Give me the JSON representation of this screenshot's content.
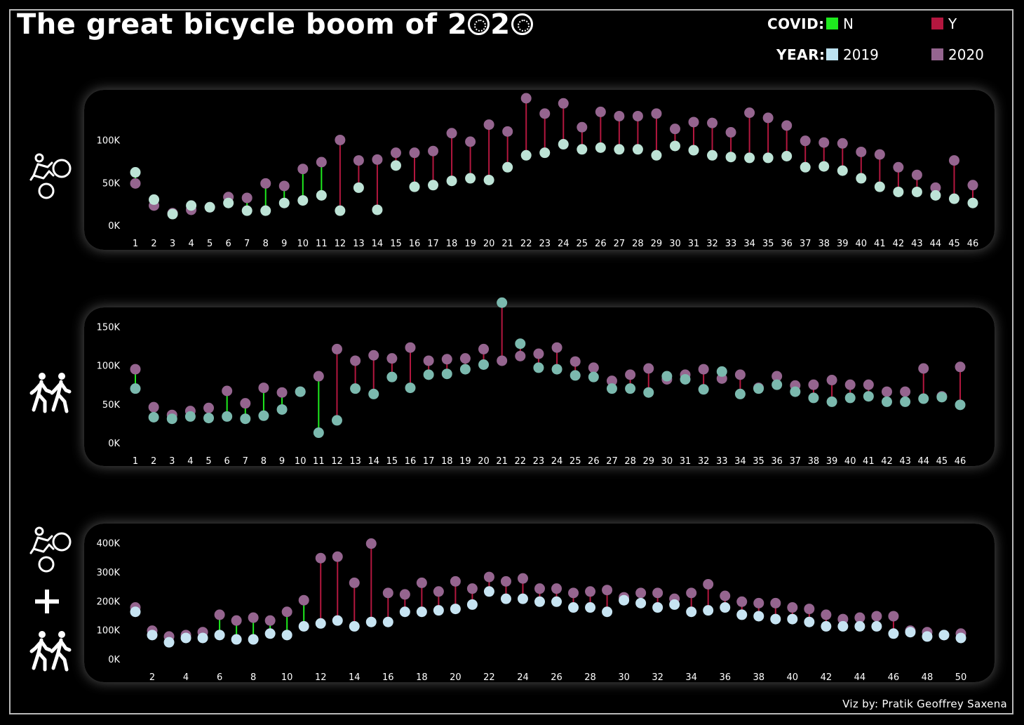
{
  "title_text": "The great bicycle boom of 2",
  "title_digit": "2",
  "legend": {
    "covid_label": "COVID:",
    "covid_n": "N",
    "covid_y": "Y",
    "year_label": "YEAR:",
    "year_2019": "2019",
    "year_2020": "2020"
  },
  "credit": "Viz by: Pratik Geoffrey Saxena",
  "colors": {
    "covid_n": "#1eea1e",
    "covid_y": "#b3173f",
    "y2019_bikes": "#bde3d6",
    "y2019_ped": "#7bb9ae",
    "y2019_total": "#c7e4f2",
    "y2020": "#95658f",
    "panel": "#050505"
  },
  "icons": [
    "cyclist-icon",
    "pedestrians-icon",
    "plus-icon"
  ],
  "chart_data": [
    {
      "type": "dumbbell",
      "subject": "bicycles",
      "ylim": [
        0,
        150000
      ],
      "yticks": [
        {
          "v": 0,
          "label": "0K"
        },
        {
          "v": 50000,
          "label": "50K"
        },
        {
          "v": 100000,
          "label": "100K"
        }
      ],
      "x": [
        1,
        2,
        3,
        4,
        5,
        6,
        7,
        8,
        9,
        10,
        11,
        12,
        13,
        14,
        15,
        16,
        17,
        18,
        19,
        20,
        21,
        22,
        23,
        24,
        25,
        26,
        27,
        28,
        29,
        30,
        31,
        32,
        33,
        34,
        35,
        36,
        37,
        38,
        39,
        40,
        41,
        42,
        43,
        44,
        45,
        46
      ],
      "xtick_labels": [
        "1",
        "2",
        "3",
        "4",
        "5",
        "6",
        "7",
        "8",
        "9",
        "10",
        "11",
        "12",
        "13",
        "14",
        "15",
        "16",
        "17",
        "18",
        "19",
        "20",
        "21",
        "22",
        "23",
        "24",
        "25",
        "26",
        "27",
        "28",
        "29",
        "30",
        "31",
        "32",
        "33",
        "34",
        "35",
        "36",
        "37",
        "38",
        "39",
        "40",
        "41",
        "42",
        "43",
        "44",
        "45",
        "46"
      ],
      "covid": [
        "N",
        "N",
        "N",
        "N",
        "N",
        "N",
        "N",
        "N",
        "N",
        "N",
        "N",
        "Y",
        "Y",
        "Y",
        "Y",
        "Y",
        "Y",
        "Y",
        "Y",
        "Y",
        "Y",
        "Y",
        "Y",
        "Y",
        "Y",
        "Y",
        "Y",
        "Y",
        "Y",
        "Y",
        "Y",
        "Y",
        "Y",
        "Y",
        "Y",
        "Y",
        "Y",
        "Y",
        "Y",
        "Y",
        "Y",
        "Y",
        "Y",
        "Y",
        "Y",
        "Y"
      ],
      "series": [
        {
          "name": "2019",
          "values": [
            63000,
            31000,
            14000,
            24000,
            22000,
            27000,
            18000,
            18000,
            27000,
            30000,
            36000,
            18000,
            45000,
            19000,
            71000,
            46000,
            48000,
            53000,
            56000,
            54000,
            69000,
            83000,
            86000,
            96000,
            90000,
            92000,
            90000,
            90000,
            83000,
            94000,
            89000,
            83000,
            81000,
            80000,
            80000,
            82000,
            69000,
            70000,
            65000,
            56000,
            46000,
            40000,
            40000,
            36000,
            32000,
            27000
          ]
        },
        {
          "name": "2020",
          "values": [
            50000,
            24000,
            15000,
            19000,
            22000,
            34000,
            33000,
            50000,
            47000,
            67000,
            75000,
            101000,
            77000,
            78000,
            86000,
            86000,
            88000,
            109000,
            99000,
            119000,
            111000,
            150000,
            132000,
            144000,
            116000,
            134000,
            129000,
            129000,
            132000,
            114000,
            122000,
            121000,
            110000,
            133000,
            127000,
            118000,
            100000,
            98000,
            97000,
            87000,
            84000,
            69000,
            60000,
            45000,
            77000,
            48000
          ]
        }
      ]
    },
    {
      "type": "dumbbell",
      "subject": "pedestrians",
      "ylim": [
        0,
        165000
      ],
      "yticks": [
        {
          "v": 0,
          "label": "0K"
        },
        {
          "v": 50000,
          "label": "50K"
        },
        {
          "v": 100000,
          "label": "100K"
        },
        {
          "v": 150000,
          "label": "150K"
        }
      ],
      "x": [
        1,
        2,
        3,
        4,
        5,
        6,
        7,
        8,
        9,
        10,
        11,
        12,
        13,
        14,
        15,
        16,
        17,
        18,
        19,
        20,
        21,
        22,
        23,
        24,
        25,
        26,
        27,
        28,
        29,
        30,
        31,
        32,
        33,
        34,
        35,
        36,
        37,
        38,
        39,
        40,
        41,
        42,
        43,
        44,
        45,
        46
      ],
      "xtick_labels": [
        "1",
        "2",
        "3",
        "4",
        "5",
        "6",
        "7",
        "8",
        "9",
        "10",
        "11",
        "12",
        "13",
        "14",
        "15",
        "16",
        "17",
        "18",
        "19",
        "20",
        "21",
        "22",
        "23",
        "24",
        "25",
        "26",
        "27",
        "28",
        "29",
        "30",
        "31",
        "32",
        "33",
        "34",
        "35",
        "36",
        "37",
        "38",
        "39",
        "40",
        "41",
        "42",
        "43",
        "44",
        "45",
        "46"
      ],
      "covid": [
        "N",
        "N",
        "N",
        "N",
        "N",
        "N",
        "N",
        "N",
        "N",
        "N",
        "N",
        "Y",
        "Y",
        "Y",
        "Y",
        "Y",
        "Y",
        "Y",
        "Y",
        "Y",
        "Y",
        "Y",
        "Y",
        "Y",
        "Y",
        "Y",
        "Y",
        "Y",
        "Y",
        "Y",
        "Y",
        "Y",
        "Y",
        "Y",
        "Y",
        "Y",
        "Y",
        "Y",
        "Y",
        "Y",
        "Y",
        "Y",
        "Y",
        "Y",
        "Y",
        "Y"
      ],
      "series": [
        {
          "name": "2019",
          "values": [
            71000,
            34000,
            32000,
            35000,
            33000,
            35000,
            32000,
            36000,
            44000,
            67000,
            14000,
            30000,
            71000,
            64000,
            86000,
            72000,
            89000,
            90000,
            96000,
            102000,
            182000,
            129000,
            98000,
            96000,
            88000,
            86000,
            71000,
            71000,
            66000,
            87000,
            83000,
            70000,
            93000,
            64000,
            71000,
            76000,
            67000,
            59000,
            54000,
            59000,
            61000,
            54000,
            54000,
            58000,
            60000,
            50000
          ]
        },
        {
          "name": "2020",
          "values": [
            96000,
            47000,
            37000,
            42000,
            46000,
            68000,
            52000,
            72000,
            66000,
            67000,
            87000,
            122000,
            107000,
            114000,
            110000,
            124000,
            107000,
            109000,
            110000,
            122000,
            107000,
            113000,
            116000,
            124000,
            106000,
            98000,
            81000,
            89000,
            97000,
            83000,
            89000,
            96000,
            84000,
            89000,
            72000,
            87000,
            75000,
            76000,
            82000,
            76000,
            76000,
            67000,
            67000,
            97000,
            61000,
            99000
          ]
        }
      ]
    },
    {
      "type": "dumbbell",
      "subject": "bicycles + pedestrians",
      "ylim": [
        0,
        440000
      ],
      "yticks": [
        {
          "v": 0,
          "label": "0K"
        },
        {
          "v": 100000,
          "label": "100K"
        },
        {
          "v": 200000,
          "label": "200K"
        },
        {
          "v": 300000,
          "label": "300K"
        },
        {
          "v": 400000,
          "label": "400K"
        }
      ],
      "x": [
        1,
        2,
        3,
        4,
        5,
        6,
        7,
        8,
        9,
        10,
        11,
        12,
        13,
        14,
        15,
        16,
        17,
        18,
        19,
        20,
        21,
        22,
        23,
        24,
        25,
        26,
        27,
        28,
        29,
        30,
        31,
        32,
        33,
        34,
        35,
        36,
        37,
        38,
        39,
        40,
        41,
        42,
        43,
        44,
        45,
        46,
        47,
        48,
        49,
        50
      ],
      "xtick_labels": [
        "2",
        "4",
        "6",
        "8",
        "10",
        "12",
        "14",
        "16",
        "18",
        "20",
        "22",
        "24",
        "26",
        "28",
        "30",
        "32",
        "34",
        "36",
        "38",
        "40",
        "42",
        "44",
        "46",
        "48",
        "50"
      ],
      "covid": [
        "N",
        "N",
        "N",
        "N",
        "N",
        "N",
        "N",
        "N",
        "N",
        "N",
        "N",
        "Y",
        "Y",
        "Y",
        "Y",
        "Y",
        "Y",
        "Y",
        "Y",
        "Y",
        "Y",
        "Y",
        "Y",
        "Y",
        "Y",
        "Y",
        "Y",
        "Y",
        "Y",
        "Y",
        "Y",
        "Y",
        "Y",
        "Y",
        "Y",
        "Y",
        "Y",
        "Y",
        "Y",
        "Y",
        "Y",
        "Y",
        "Y",
        "Y",
        "Y",
        "Y",
        "Y",
        "Y",
        "Y",
        "Y"
      ],
      "series": [
        {
          "name": "2019",
          "values": [
            165000,
            85000,
            60000,
            75000,
            75000,
            85000,
            70000,
            70000,
            90000,
            85000,
            115000,
            125000,
            135000,
            115000,
            130000,
            130000,
            165000,
            165000,
            170000,
            175000,
            190000,
            235000,
            210000,
            210000,
            200000,
            200000,
            180000,
            180000,
            165000,
            205000,
            195000,
            180000,
            190000,
            165000,
            170000,
            180000,
            155000,
            150000,
            140000,
            140000,
            130000,
            115000,
            115000,
            115000,
            115000,
            90000,
            95000,
            80000,
            85000,
            75000
          ]
        },
        {
          "name": "2020",
          "values": [
            180000,
            100000,
            80000,
            85000,
            95000,
            155000,
            135000,
            145000,
            135000,
            165000,
            205000,
            350000,
            355000,
            265000,
            400000,
            230000,
            225000,
            265000,
            235000,
            270000,
            245000,
            285000,
            270000,
            280000,
            245000,
            245000,
            230000,
            235000,
            240000,
            215000,
            230000,
            230000,
            210000,
            230000,
            260000,
            220000,
            200000,
            195000,
            195000,
            180000,
            175000,
            155000,
            140000,
            145000,
            150000,
            150000,
            100000,
            95000,
            85000,
            90000
          ]
        }
      ]
    }
  ]
}
